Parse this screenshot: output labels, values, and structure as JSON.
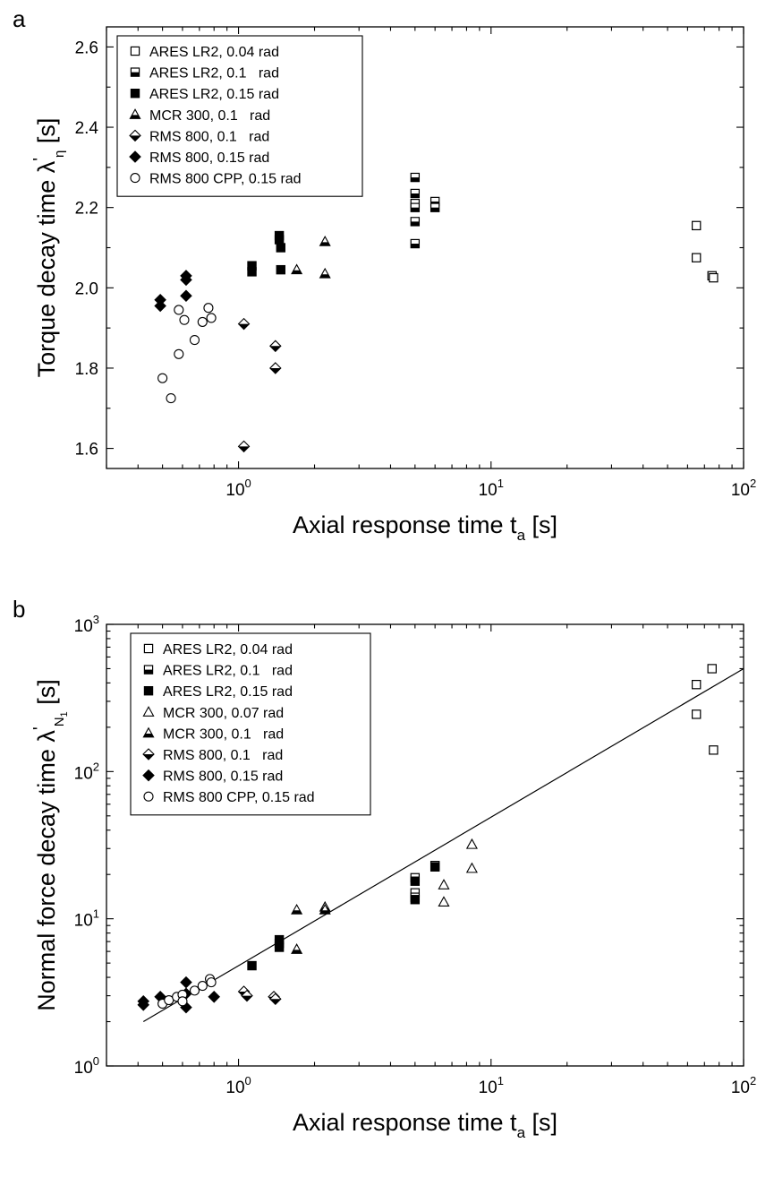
{
  "chart_data": [
    {
      "panel": "a",
      "type": "scatter",
      "xscale": "log",
      "xlim": [
        0.3,
        100
      ],
      "ylim": [
        1.55,
        2.65
      ],
      "xlabel": {
        "main": "Axial response time t",
        "sub": "a",
        "unit": "[s]"
      },
      "ylabel": {
        "main": "Torque decay time λ",
        "sup": "'",
        "sub": "η",
        "unit": "[s]"
      },
      "xticks": [
        {
          "value": 1,
          "base": "10",
          "exp": "0"
        },
        {
          "value": 10,
          "base": "10",
          "exp": "1"
        },
        {
          "value": 100,
          "base": "10",
          "exp": "2"
        }
      ],
      "yticks": [
        {
          "value": 1.6,
          "label": "1.6"
        },
        {
          "value": 1.8,
          "label": "1.8"
        },
        {
          "value": 2.0,
          "label": "2.0"
        },
        {
          "value": 2.2,
          "label": "2.2"
        },
        {
          "value": 2.4,
          "label": "2.4"
        },
        {
          "value": 2.6,
          "label": "2.6"
        }
      ],
      "legend_position": "top-left",
      "series": [
        {
          "name": "ARES LR2, 0.04 rad",
          "marker": "square-open",
          "points": [
            [
              65,
              2.155
            ],
            [
              65,
              2.075
            ],
            [
              75,
              2.03
            ],
            [
              76,
              2.025
            ]
          ]
        },
        {
          "name": "ARES LR2, 0.1   rad",
          "marker": "square-half",
          "points": [
            [
              5.0,
              2.275
            ],
            [
              5.0,
              2.235
            ],
            [
              5.0,
              2.21
            ],
            [
              5.0,
              2.2
            ],
            [
              5.0,
              2.165
            ],
            [
              5.0,
              2.11
            ],
            [
              6.0,
              2.215
            ],
            [
              6.0,
              2.2
            ]
          ]
        },
        {
          "name": "ARES LR2, 0.15 rad",
          "marker": "square-filled",
          "points": [
            [
              1.13,
              2.055
            ],
            [
              1.13,
              2.04
            ],
            [
              1.45,
              2.13
            ],
            [
              1.45,
              2.12
            ],
            [
              1.47,
              2.1
            ],
            [
              1.47,
              2.045
            ]
          ]
        },
        {
          "name": "MCR 300, 0.1   rad",
          "marker": "triangle-half",
          "points": [
            [
              1.7,
              2.045
            ],
            [
              2.2,
              2.115
            ],
            [
              2.2,
              2.035
            ]
          ]
        },
        {
          "name": "RMS 800, 0.1   rad",
          "marker": "diamond-half",
          "points": [
            [
              1.05,
              1.91
            ],
            [
              1.05,
              1.605
            ],
            [
              1.4,
              1.855
            ],
            [
              1.4,
              1.8
            ]
          ]
        },
        {
          "name": "RMS 800, 0.15 rad",
          "marker": "diamond-filled",
          "points": [
            [
              0.49,
              1.97
            ],
            [
              0.49,
              1.955
            ],
            [
              0.62,
              2.03
            ],
            [
              0.62,
              2.02
            ],
            [
              0.62,
              1.98
            ]
          ]
        },
        {
          "name": "RMS 800 CPP, 0.15 rad",
          "marker": "circle-open",
          "points": [
            [
              0.5,
              1.775
            ],
            [
              0.54,
              1.725
            ],
            [
              0.58,
              1.945
            ],
            [
              0.58,
              1.835
            ],
            [
              0.61,
              1.92
            ],
            [
              0.67,
              1.87
            ],
            [
              0.72,
              1.915
            ],
            [
              0.76,
              1.95
            ],
            [
              0.78,
              1.925
            ]
          ]
        }
      ]
    },
    {
      "panel": "b",
      "type": "scatter",
      "xscale": "log",
      "yscale": "log",
      "xlim": [
        0.3,
        100
      ],
      "ylim": [
        1,
        1000
      ],
      "xlabel": {
        "main": "Axial response time t",
        "sub": "a",
        "unit": "[s]"
      },
      "ylabel": {
        "main": "Normal force decay time λ",
        "sup": "'",
        "sub": "N",
        "subsub": "1",
        "unit": "[s]"
      },
      "xticks": [
        {
          "value": 1,
          "base": "10",
          "exp": "0"
        },
        {
          "value": 10,
          "base": "10",
          "exp": "1"
        },
        {
          "value": 100,
          "base": "10",
          "exp": "2"
        }
      ],
      "yticks": [
        {
          "value": 1,
          "base": "10",
          "exp": "0"
        },
        {
          "value": 10,
          "base": "10",
          "exp": "1"
        },
        {
          "value": 100,
          "base": "10",
          "exp": "2"
        },
        {
          "value": 1000,
          "base": "10",
          "exp": "3"
        }
      ],
      "legend_position": "top-left",
      "fit_line": {
        "points": [
          [
            0.42,
            2.0
          ],
          [
            100,
            500
          ]
        ]
      },
      "series": [
        {
          "name": "ARES LR2, 0.04 rad",
          "marker": "square-open",
          "points": [
            [
              65,
              390
            ],
            [
              65,
              245
            ],
            [
              75,
              500
            ],
            [
              76,
              140
            ]
          ]
        },
        {
          "name": "ARES LR2, 0.1   rad",
          "marker": "square-half",
          "points": [
            [
              5.0,
              19
            ],
            [
              5.0,
              15
            ],
            [
              5.0,
              14
            ],
            [
              6.0,
              23
            ]
          ]
        },
        {
          "name": "ARES LR2, 0.15 rad",
          "marker": "square-filled",
          "points": [
            [
              1.13,
              4.8
            ],
            [
              1.45,
              7.2
            ],
            [
              1.45,
              6.8
            ],
            [
              1.45,
              6.4
            ],
            [
              5.0,
              18
            ],
            [
              5.0,
              13.5
            ],
            [
              6.0,
              22.5
            ]
          ]
        },
        {
          "name": "MCR 300, 0.07 rad",
          "marker": "triangle-open",
          "points": [
            [
              6.5,
              17
            ],
            [
              6.5,
              13
            ],
            [
              8.4,
              32
            ],
            [
              8.4,
              22
            ]
          ]
        },
        {
          "name": "MCR 300, 0.1   rad",
          "marker": "triangle-half",
          "points": [
            [
              1.7,
              11.5
            ],
            [
              1.7,
              6.2
            ],
            [
              2.2,
              12
            ],
            [
              2.2,
              11.5
            ]
          ]
        },
        {
          "name": "RMS 800, 0.1   rad",
          "marker": "diamond-half",
          "points": [
            [
              1.05,
              3.2
            ],
            [
              1.08,
              3.0
            ],
            [
              1.38,
              2.95
            ],
            [
              1.4,
              2.85
            ]
          ]
        },
        {
          "name": "RMS 800, 0.15 rad",
          "marker": "diamond-filled",
          "points": [
            [
              0.42,
              2.75
            ],
            [
              0.42,
              2.6
            ],
            [
              0.49,
              2.95
            ],
            [
              0.62,
              3.7
            ],
            [
              0.62,
              3.1
            ],
            [
              0.62,
              2.5
            ],
            [
              0.8,
              2.95
            ]
          ]
        },
        {
          "name": "RMS 800 CPP, 0.15 rad",
          "marker": "circle-open",
          "points": [
            [
              0.5,
              2.65
            ],
            [
              0.53,
              2.8
            ],
            [
              0.57,
              2.95
            ],
            [
              0.6,
              3.05
            ],
            [
              0.6,
              2.75
            ],
            [
              0.67,
              3.25
            ],
            [
              0.72,
              3.5
            ],
            [
              0.77,
              3.9
            ],
            [
              0.78,
              3.7
            ]
          ]
        }
      ]
    }
  ]
}
